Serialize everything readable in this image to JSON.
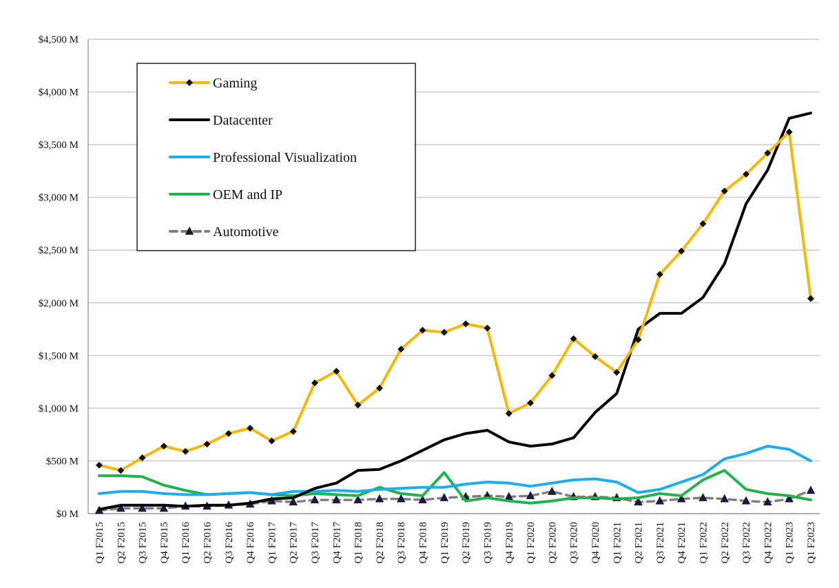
{
  "chart_data": {
    "type": "line",
    "categories": [
      "Q1 F2015",
      "Q2 F2015",
      "Q3 F2015",
      "Q4 F2015",
      "Q1 F2016",
      "Q2 F2016",
      "Q3 F2016",
      "Q4 F2016",
      "Q1 F2017",
      "Q2 F2017",
      "Q3 F2017",
      "Q4 F2017",
      "Q1 F2018",
      "Q2 F2018",
      "Q3 F2018",
      "Q4 F2018",
      "Q1 F2019",
      "Q2 F2019",
      "Q3 F2019",
      "Q4 F2019",
      "Q1 F2020",
      "Q2 F2020",
      "Q3 F2020",
      "Q4 F2020",
      "Q1 F2021",
      "Q2 F2021",
      "Q3 F2021",
      "Q4 F2021",
      "Q1 F2022",
      "Q2 F2022",
      "Q3 F2022",
      "Q4 F2022",
      "Q1 F2023",
      "Q1 F2023"
    ],
    "ylim": [
      0,
      4500
    ],
    "yticks": [
      0,
      500,
      1000,
      1500,
      2000,
      2500,
      3000,
      3500,
      4000,
      4500
    ],
    "ytick_labels": [
      "$0 M",
      "$500 M",
      "$1,000 M",
      "$1,500 M",
      "$2,000 M",
      "$2,500 M",
      "$3,000 M",
      "$3,500 M",
      "$4,000 M",
      "$4,500 M"
    ],
    "grid": true,
    "legend_position": "top-left",
    "series": [
      {
        "name": "Gaming",
        "color": "#F5B800",
        "marker": "diamond",
        "dash": false,
        "values": [
          460,
          410,
          530,
          640,
          590,
          660,
          760,
          810,
          690,
          780,
          1240,
          1350,
          1030,
          1190,
          1560,
          1740,
          1720,
          1800,
          1760,
          950,
          1050,
          1310,
          1660,
          1490,
          1340,
          1650,
          2270,
          2490,
          2750,
          3060,
          3220,
          3420,
          3620,
          2040
        ]
      },
      {
        "name": "Datacenter",
        "color": "#000000",
        "marker": "none",
        "dash": false,
        "values": [
          40,
          80,
          80,
          80,
          70,
          80,
          80,
          100,
          140,
          150,
          240,
          290,
          410,
          420,
          500,
          600,
          700,
          760,
          790,
          680,
          640,
          660,
          720,
          960,
          1140,
          1750,
          1900,
          1900,
          2050,
          2370,
          2940,
          3260,
          3750,
          3800
        ]
      },
      {
        "name": "Professional Visualization",
        "color": "#1EADEA",
        "marker": "none",
        "dash": false,
        "values": [
          190,
          210,
          210,
          190,
          180,
          180,
          190,
          200,
          180,
          210,
          210,
          220,
          210,
          230,
          240,
          250,
          250,
          280,
          300,
          290,
          260,
          290,
          320,
          330,
          300,
          200,
          230,
          300,
          370,
          520,
          570,
          640,
          610,
          500
        ]
      },
      {
        "name": "OEM and IP",
        "color": "#22B14C",
        "marker": "none",
        "dash": false,
        "values": [
          360,
          360,
          350,
          270,
          220,
          180,
          190,
          200,
          180,
          170,
          190,
          180,
          170,
          250,
          190,
          170,
          390,
          120,
          150,
          120,
          100,
          120,
          150,
          150,
          140,
          150,
          190,
          170,
          320,
          410,
          230,
          190,
          170,
          130
        ]
      },
      {
        "name": "Automotive",
        "color": "#7F7F7F",
        "marker": "triangle",
        "dash": true,
        "values": [
          30,
          50,
          50,
          50,
          70,
          70,
          80,
          90,
          120,
          110,
          130,
          130,
          130,
          140,
          140,
          130,
          150,
          160,
          170,
          160,
          170,
          210,
          160,
          160,
          150,
          110,
          120,
          140,
          150,
          140,
          120,
          110,
          140,
          220
        ]
      }
    ]
  }
}
